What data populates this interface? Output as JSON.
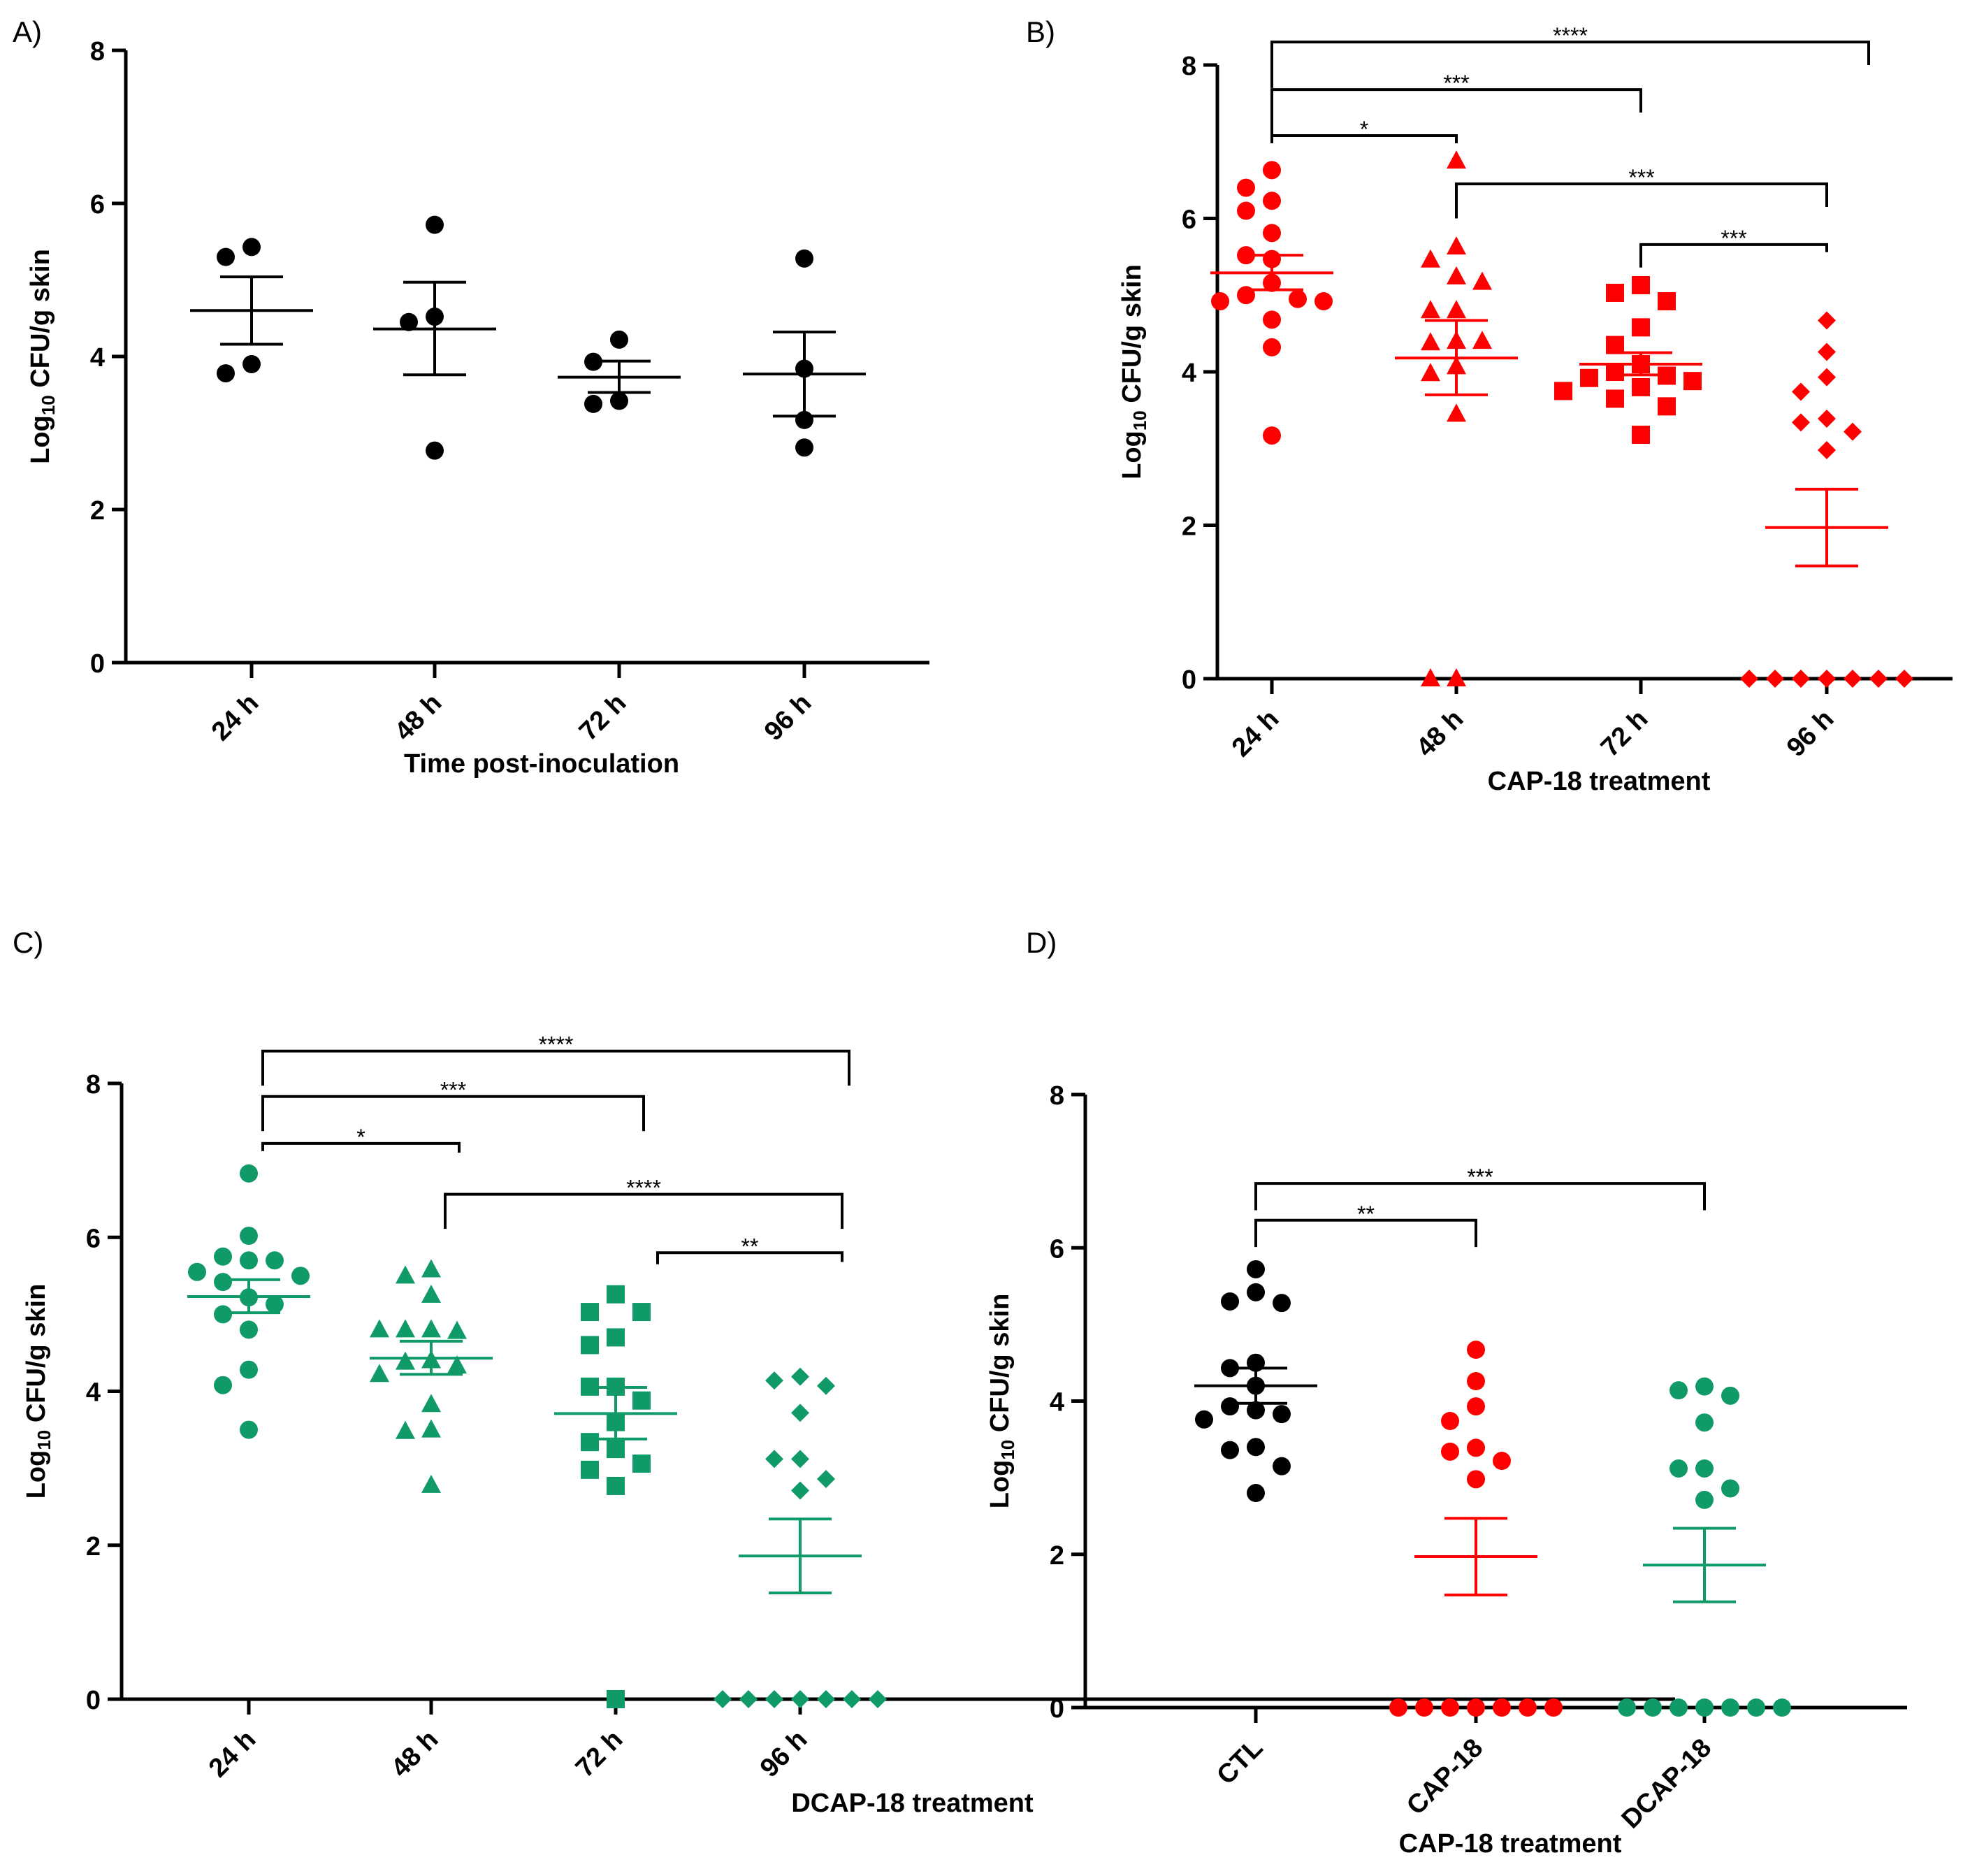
{
  "colors": {
    "black": "#000000",
    "red": "#ff0000",
    "green": "#109a68"
  },
  "chart_data": [
    {
      "panel_label": "A)",
      "type": "scatter",
      "xlabel": "Time post-inoculation",
      "ylabel_prefix": "Log",
      "ylabel_sub": "10",
      "ylabel_suffix": " CFU/g skin",
      "ylim": [
        0,
        8
      ],
      "yticks": [
        "0",
        "2",
        "4",
        "6",
        "8"
      ],
      "categories": [
        "24 h",
        "48 h",
        "72 h",
        "96 h"
      ],
      "groups": [
        {
          "color": "black",
          "marker": "circle",
          "values": [
            5.43,
            5.3,
            3.9,
            3.78
          ],
          "mean": 4.6,
          "sem_low": 4.16,
          "sem_high": 5.04
        },
        {
          "color": "black",
          "marker": "circle",
          "values": [
            5.72,
            4.52,
            4.45,
            2.77
          ],
          "mean": 4.36,
          "sem_low": 3.76,
          "sem_high": 4.97
        },
        {
          "color": "black",
          "marker": "circle",
          "values": [
            4.22,
            3.93,
            3.42,
            3.38
          ],
          "mean": 3.73,
          "sem_low": 3.53,
          "sem_high": 3.94
        },
        {
          "color": "black",
          "marker": "circle",
          "values": [
            5.28,
            3.84,
            3.17,
            2.81
          ],
          "mean": 3.77,
          "sem_low": 3.22,
          "sem_high": 4.32
        }
      ],
      "comparisons": []
    },
    {
      "panel_label": "B)",
      "type": "scatter",
      "xlabel": "CAP-18 treatment",
      "ylabel_prefix": "Log",
      "ylabel_sub": "10",
      "ylabel_suffix": " CFU/g skin",
      "ylim": [
        0,
        8
      ],
      "yticks": [
        "0",
        "2",
        "4",
        "6",
        "8"
      ],
      "categories": [
        "24 h",
        "48 h",
        "72 h",
        "96 h"
      ],
      "groups": [
        {
          "color": "red",
          "marker": "circle",
          "values": [
            6.63,
            6.4,
            6.23,
            6.1,
            5.81,
            5.52,
            5.47,
            5.16,
            5.0,
            4.95,
            4.92,
            4.92,
            4.68,
            4.32,
            3.17
          ],
          "mean": 5.29,
          "sem_low": 5.07,
          "sem_high": 5.52
        },
        {
          "color": "red",
          "marker": "triangle",
          "values": [
            6.75,
            5.63,
            5.46,
            5.24,
            5.17,
            4.8,
            4.8,
            4.4,
            4.38,
            4.4,
            4.07,
            3.98,
            3.45,
            0,
            0
          ],
          "mean": 4.18,
          "sem_low": 3.7,
          "sem_high": 4.67
        },
        {
          "color": "red",
          "marker": "square",
          "values": [
            5.13,
            5.03,
            4.92,
            4.58,
            4.35,
            4.1,
            4.0,
            3.95,
            3.92,
            3.88,
            3.8,
            3.75,
            3.65,
            3.55,
            3.18
          ],
          "mean": 4.1,
          "sem_low": 3.96,
          "sem_high": 4.25
        },
        {
          "color": "red",
          "marker": "diamond",
          "values": [
            4.67,
            4.26,
            3.93,
            3.74,
            3.39,
            3.34,
            3.22,
            2.98,
            0,
            0,
            0,
            0,
            0,
            0,
            0
          ],
          "mean": 1.97,
          "sem_low": 1.47,
          "sem_high": 2.47
        }
      ],
      "comparisons": [
        {
          "from": "24 h",
          "to": "96 h",
          "label": "****"
        },
        {
          "from": "24 h",
          "to": "72 h",
          "label": "***"
        },
        {
          "from": "24 h",
          "to": "48 h",
          "label": "*"
        },
        {
          "from": "48 h",
          "to": "96 h",
          "label": "***"
        },
        {
          "from": "72 h",
          "to": "96 h",
          "label": "***"
        }
      ]
    },
    {
      "panel_label": "C)",
      "type": "scatter",
      "xlabel": "DCAP-18 treatment",
      "ylabel_prefix": "Log",
      "ylabel_sub": "10",
      "ylabel_suffix": " CFU/g skin",
      "ylim": [
        0,
        8
      ],
      "yticks": [
        "0",
        "2",
        "4",
        "6",
        "8"
      ],
      "categories": [
        "24 h",
        "48 h",
        "72 h",
        "96 h"
      ],
      "groups": [
        {
          "color": "green",
          "marker": "circle",
          "values": [
            6.83,
            6.02,
            5.75,
            5.7,
            5.7,
            5.55,
            5.5,
            5.42,
            5.22,
            5.13,
            5.0,
            4.8,
            4.28,
            4.08,
            3.5
          ],
          "mean": 5.23,
          "sem_low": 5.02,
          "sem_high": 5.45
        },
        {
          "color": "green",
          "marker": "triangle",
          "values": [
            5.58,
            5.5,
            5.25,
            4.8,
            4.8,
            4.78,
            4.8,
            4.4,
            4.38,
            4.33,
            4.22,
            3.83,
            3.5,
            3.48,
            2.78
          ],
          "mean": 4.43,
          "sem_low": 4.22,
          "sem_high": 4.65
        },
        {
          "color": "green",
          "marker": "square",
          "values": [
            5.26,
            5.03,
            5.03,
            4.7,
            4.6,
            4.06,
            4.06,
            3.88,
            3.6,
            3.34,
            3.25,
            3.06,
            2.98,
            2.77,
            0
          ],
          "mean": 3.71,
          "sem_low": 3.38,
          "sem_high": 4.05
        },
        {
          "color": "green",
          "marker": "diamond",
          "values": [
            4.19,
            4.14,
            4.07,
            3.72,
            3.12,
            3.12,
            2.86,
            2.71,
            0,
            0,
            0,
            0,
            0,
            0,
            0
          ],
          "mean": 1.86,
          "sem_low": 1.38,
          "sem_high": 2.34
        }
      ],
      "comparisons": [
        {
          "from": "24 h",
          "to": "96 h",
          "label": "****"
        },
        {
          "from": "24 h",
          "to": "72 h",
          "label": "***"
        },
        {
          "from": "24 h",
          "to": "48 h",
          "label": "*"
        },
        {
          "from": "48 h",
          "to": "96 h",
          "label": "****"
        },
        {
          "from": "72 h",
          "to": "96 h",
          "label": "**"
        }
      ]
    },
    {
      "panel_label": "D)",
      "type": "scatter",
      "xlabel": "CAP-18 treatment",
      "ylabel_prefix": "Log",
      "ylabel_sub": "10",
      "ylabel_suffix": " CFU/g skin",
      "ylim": [
        0,
        8
      ],
      "yticks": [
        "0",
        "2",
        "4",
        "6",
        "8"
      ],
      "categories": [
        "CTL",
        "CAP-18",
        "DCAP-18"
      ],
      "groups": [
        {
          "color": "black",
          "marker": "circle",
          "values": [
            5.72,
            5.42,
            5.3,
            5.28,
            4.5,
            4.43,
            4.2,
            3.93,
            3.88,
            3.83,
            3.76,
            3.4,
            3.36,
            3.15,
            2.8
          ],
          "mean": 4.2,
          "sem_low": 3.97,
          "sem_high": 4.43
        },
        {
          "color": "red",
          "marker": "circle",
          "values": [
            4.67,
            4.26,
            3.93,
            3.74,
            3.39,
            3.34,
            3.22,
            2.98,
            0,
            0,
            0,
            0,
            0,
            0,
            0
          ],
          "mean": 1.97,
          "sem_low": 1.47,
          "sem_high": 2.47
        },
        {
          "color": "green",
          "marker": "circle",
          "values": [
            4.19,
            4.14,
            4.07,
            3.72,
            3.12,
            3.12,
            2.86,
            2.71,
            0,
            0,
            0,
            0,
            0,
            0,
            0
          ],
          "mean": 1.86,
          "sem_low": 1.38,
          "sem_high": 2.34
        }
      ],
      "comparisons": [
        {
          "from": "CTL",
          "to": "DCAP-18",
          "label": "***"
        },
        {
          "from": "CTL",
          "to": "CAP-18",
          "label": "**"
        }
      ]
    }
  ]
}
